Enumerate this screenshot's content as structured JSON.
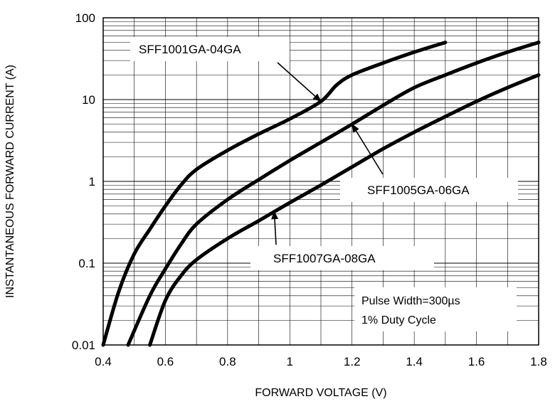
{
  "chart_data": {
    "type": "line",
    "title": "",
    "xlabel": "FORWARD VOLTAGE (V)",
    "ylabel": "INSTANTANEOUS FORWARD CURRENT (A)",
    "xlim": [
      0.4,
      1.8
    ],
    "ylim": [
      0.01,
      100
    ],
    "yscale": "log",
    "grid": true,
    "x_ticks": [
      "0.4",
      "0.6",
      "0.8",
      "1",
      "1.2",
      "1.4",
      "1.6",
      "1.8"
    ],
    "y_ticks": [
      "0.01",
      "0.1",
      "1",
      "10",
      "100"
    ],
    "series": [
      {
        "name": "SFF1001GA-04GA",
        "points": [
          [
            0.4,
            0.01
          ],
          [
            0.45,
            0.045
          ],
          [
            0.5,
            0.13
          ],
          [
            0.55,
            0.26
          ],
          [
            0.6,
            0.5
          ],
          [
            0.65,
            0.9
          ],
          [
            0.7,
            1.4
          ],
          [
            0.8,
            2.4
          ],
          [
            0.9,
            3.8
          ],
          [
            1.0,
            5.8
          ],
          [
            1.1,
            9.5
          ],
          [
            1.15,
            15
          ],
          [
            1.2,
            20
          ],
          [
            1.3,
            28
          ],
          [
            1.4,
            38
          ],
          [
            1.5,
            50
          ]
        ]
      },
      {
        "name": "SFF1005GA-06GA",
        "points": [
          [
            0.48,
            0.01
          ],
          [
            0.55,
            0.04
          ],
          [
            0.6,
            0.085
          ],
          [
            0.65,
            0.17
          ],
          [
            0.7,
            0.3
          ],
          [
            0.8,
            0.6
          ],
          [
            0.9,
            1.05
          ],
          [
            1.0,
            1.8
          ],
          [
            1.1,
            3.0
          ],
          [
            1.2,
            5.0
          ],
          [
            1.3,
            8.5
          ],
          [
            1.4,
            14
          ],
          [
            1.5,
            20
          ],
          [
            1.6,
            28
          ],
          [
            1.7,
            38
          ],
          [
            1.8,
            50
          ]
        ]
      },
      {
        "name": "SFF1007GA-08GA",
        "points": [
          [
            0.55,
            0.01
          ],
          [
            0.6,
            0.035
          ],
          [
            0.65,
            0.07
          ],
          [
            0.7,
            0.11
          ],
          [
            0.8,
            0.2
          ],
          [
            0.9,
            0.33
          ],
          [
            1.0,
            0.55
          ],
          [
            1.1,
            0.9
          ],
          [
            1.2,
            1.5
          ],
          [
            1.3,
            2.5
          ],
          [
            1.4,
            4.0
          ],
          [
            1.5,
            6.2
          ],
          [
            1.6,
            9.5
          ],
          [
            1.7,
            14
          ],
          [
            1.8,
            20
          ]
        ]
      }
    ],
    "annotations": [
      {
        "text": "SFF1001GA-04GA",
        "series": "SFF1001GA-04GA",
        "arrow_to": [
          1.1,
          9.5
        ]
      },
      {
        "text": "SFF1005GA-06GA",
        "series": "SFF1005GA-06GA",
        "arrow_to": [
          1.2,
          5.0
        ]
      },
      {
        "text": "SFF1007GA-08GA",
        "series": "SFF1007GA-08GA",
        "arrow_to": [
          0.95,
          0.43
        ]
      }
    ],
    "note_lines": [
      "Pulse Width=300µs",
      "1% Duty Cycle"
    ]
  }
}
